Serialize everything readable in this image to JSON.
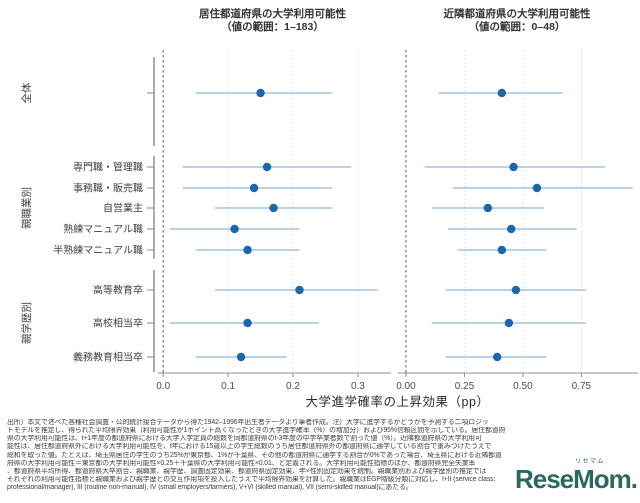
{
  "chart_data": {
    "type": "scatter",
    "subtype": "forest-plot: point estimates with 95% confidence intervals, two panels",
    "rows": [
      "全体",
      "専門職・管理職",
      "事務職・販売職",
      "自営業主",
      "熟練マニュアル職",
      "半熟練マニュアル職",
      "高等教育卒",
      "高校相当卒",
      "義務教育相当卒"
    ],
    "groups": [
      {
        "label": "全体",
        "row_indices": [
          0
        ],
        "show_row_labels": false
      },
      {
        "label": "親職業別",
        "row_indices": [
          1,
          2,
          3,
          4,
          5
        ],
        "show_row_labels": true
      },
      {
        "label": "親学歴別",
        "row_indices": [
          6,
          7,
          8
        ],
        "show_row_labels": true
      }
    ],
    "panels": [
      {
        "title": "居住都道府県の大学利用可能性",
        "subtitle": "（値の範囲：1–183）",
        "xlim": [
          -0.008,
          0.351
        ],
        "ticks": [
          0,
          0.1,
          0.2,
          0.3
        ],
        "tick_labels": [
          "0.0",
          "0.1",
          "0.2",
          "0.3"
        ],
        "zero_line": 0,
        "estimates": [
          0.15,
          0.16,
          0.14,
          0.17,
          0.11,
          0.13,
          0.21,
          0.13,
          0.12
        ],
        "ci_low": [
          0.05,
          0.03,
          0.03,
          0.08,
          0.01,
          0.05,
          0.08,
          0.01,
          0.05
        ],
        "ci_high": [
          0.26,
          0.29,
          0.26,
          0.26,
          0.21,
          0.21,
          0.33,
          0.24,
          0.19
        ]
      },
      {
        "title": "近隣都道府県の大学利用可能性",
        "subtitle": "（値の範囲：0–48）",
        "xlim": [
          -0.034,
          0.992
        ],
        "ticks": [
          0,
          0.25,
          0.5,
          0.75
        ],
        "tick_labels": [
          "0.00",
          "0.25",
          "0.50",
          "0.75"
        ],
        "zero_line": 0,
        "estimates": [
          0.41,
          0.46,
          0.56,
          0.35,
          0.45,
          0.41,
          0.47,
          0.44,
          0.39
        ],
        "ci_low": [
          0.14,
          0.08,
          0.2,
          0.11,
          0.18,
          0.22,
          0.17,
          0.11,
          0.17
        ],
        "ci_high": [
          0.67,
          0.85,
          0.97,
          0.59,
          0.73,
          0.6,
          0.77,
          0.77,
          0.6
        ]
      }
    ],
    "xlabel": "大学進学確率の上昇効果（pp）",
    "grid": "dotted vertical gridlines at ticks; dark dotted line at zero",
    "legend_position": "none"
  },
  "colors": {
    "point": "#1a67b0",
    "ci_line": "#8db8dc",
    "grid": "#dedede",
    "zero_line": "#5a5a5a",
    "axis": "#8f8f8f",
    "bracket": "#8a8a8a",
    "tick_label": "#4d4d4d",
    "category_label": "#3f3f3f",
    "logo": "#1a5c52"
  },
  "footer": {
    "lines": [
      "出所）本文で述べた各種社会調査・公的統計接合データから得た1942–1996年出生者データより筆者作成。注）大学に進学するかどうかを予測する二項ロジッ",
      "トモデルを推定し、得られた平均限界効果（利用可能性が1ポイント高くなったときの大学進学確率（%）の増加分）および95%信頼区間を示している。居住都道府",
      "県の大学利用可能性は、t+1年度の都道府県における大学入学定員の総数を同都道府県のt-3年度の中学卒業者数で割った値（%）。近隣都道府県の大学利用可",
      "能性は、居住都道府県外における大学利用可能性を、t年における15歳以上の学生総数のうち居住都道府県外の都道府県に通学している割合で重みづけたうえで",
      "総和を取った値。たとえば、埼玉県居住の学生のうち25%が東京都、1%が千葉県、その他の都道府県に通学する割合が0%であった場合、埼玉県における近隣都道",
      "府県の大学利用可能性＝東京都の大学利用可能性×0.25＋千葉県の大学利用可能性×0.01、と定義される。大学利用可能性指標のほか、都道府県完全失業率",
      "、都道府県平均所得、都道府県大卒割合、親職業、親学歴、調査固定効果、都道府県固定効果、年×性別固定効果を統制。親職業別および親学歴別の推定では",
      "それぞれの利用可能性指標と親職業および親学歴との交互作用項を投入したうえで平均限界効果を計算した。親職業はEGP階級分類に対応し、I+II (service class:",
      "professional/manager), III (routine non-manual), IV (small employers/farmers), V+VI (skilled manual), VII (semi-skilled manual)にあたる。"
    ]
  },
  "logo": {
    "ruby": "リセマム",
    "text": "ReseMom."
  }
}
